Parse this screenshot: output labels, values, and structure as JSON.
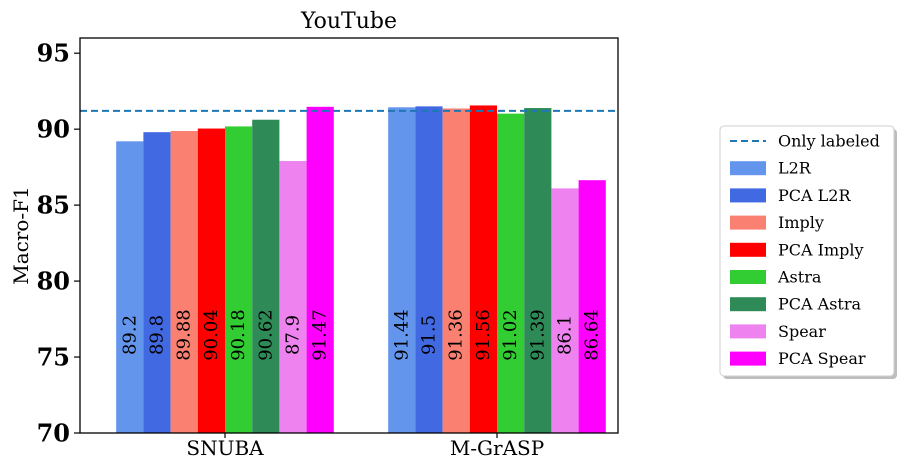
{
  "chart_data": {
    "type": "bar",
    "title": "YouTube",
    "xlabel": "",
    "ylabel": "Macro-F1",
    "ylim": [
      70,
      96
    ],
    "yticks": [
      70,
      75,
      80,
      85,
      90,
      95
    ],
    "categories": [
      "SNUBA",
      "M-GrASP"
    ],
    "reference_line": {
      "name": "Only labeled",
      "value": 91.2,
      "color": "#1f77b4",
      "style": "dashed"
    },
    "series": [
      {
        "name": "L2R",
        "color": "#6495ED",
        "values": [
          89.2,
          91.44
        ],
        "labels": [
          "89.2",
          "91.44"
        ]
      },
      {
        "name": "PCA L2R",
        "color": "#4169E1",
        "values": [
          89.8,
          91.5
        ],
        "labels": [
          "89.8",
          "91.5"
        ]
      },
      {
        "name": "Imply",
        "color": "#FA8072",
        "values": [
          89.88,
          91.36
        ],
        "labels": [
          "89.88",
          "91.36"
        ]
      },
      {
        "name": "PCA Imply",
        "color": "#FF0000",
        "values": [
          90.04,
          91.56
        ],
        "labels": [
          "90.04",
          "91.56"
        ]
      },
      {
        "name": "Astra",
        "color": "#32CD32",
        "values": [
          90.18,
          91.02
        ],
        "labels": [
          "90.18",
          "91.02"
        ]
      },
      {
        "name": "PCA Astra",
        "color": "#2E8B57",
        "values": [
          90.62,
          91.39
        ],
        "labels": [
          "90.62",
          "91.39"
        ]
      },
      {
        "name": "Spear",
        "color": "#EE82EE",
        "values": [
          87.9,
          86.1
        ],
        "labels": [
          "87.9",
          "86.1"
        ]
      },
      {
        "name": "PCA Spear",
        "color": "#FF00FF",
        "values": [
          91.47,
          86.64
        ],
        "labels": [
          "91.47",
          "86.64"
        ]
      }
    ],
    "grid": false,
    "legend_position": "right"
  }
}
